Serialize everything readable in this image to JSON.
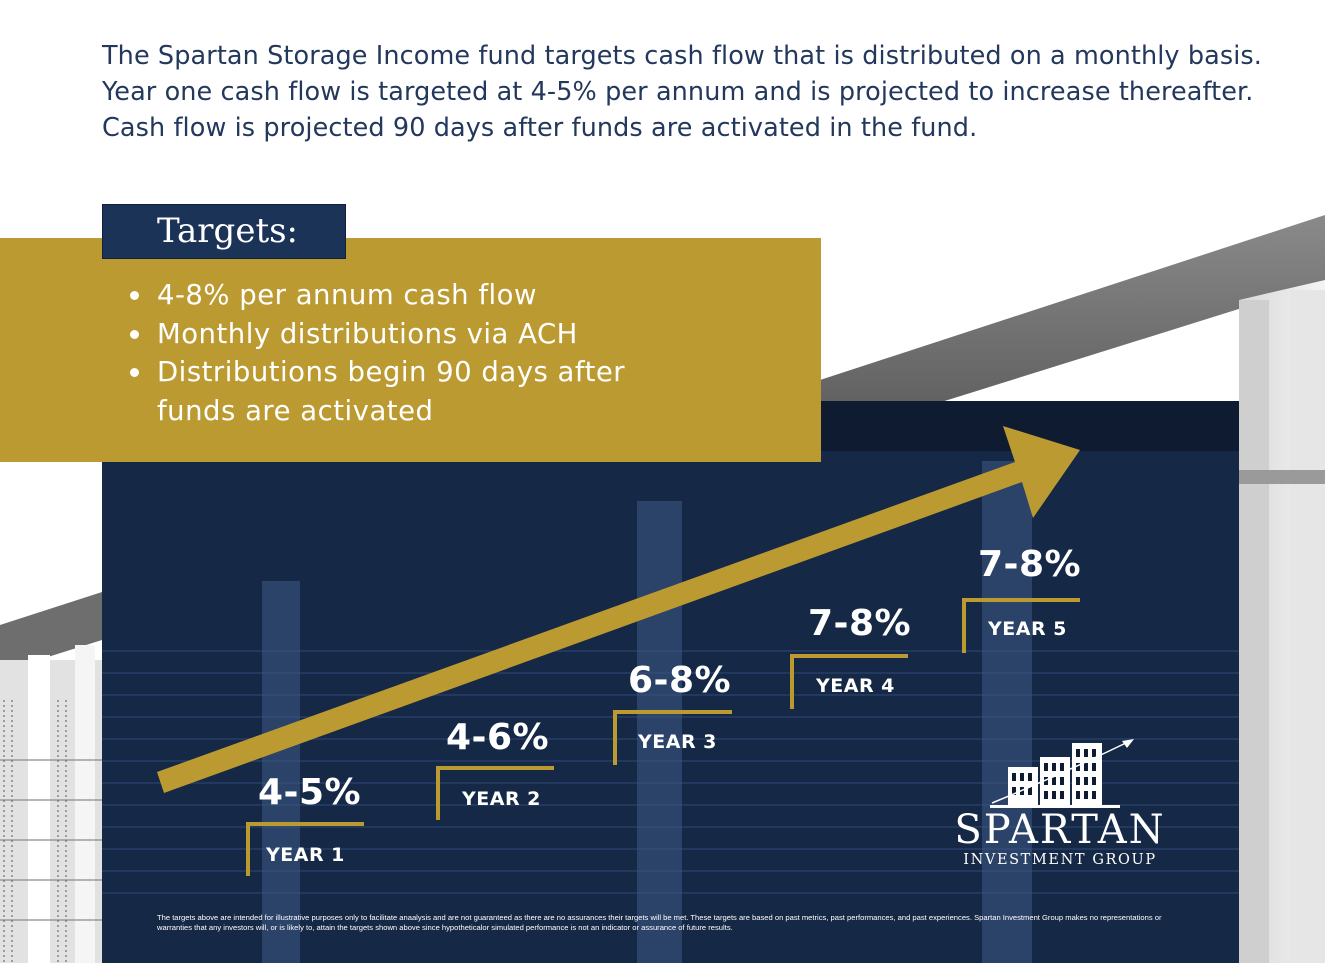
{
  "intro": {
    "line1": "The Spartan Storage Income fund targets cash flow that is distributed on a monthly basis.",
    "line2": "Year one cash flow is targeted at 4-5% per annum and is projected to increase thereafter.",
    "line3": "Cash flow is projected 90 days after funds are activated in the fund."
  },
  "targets": {
    "title": "Targets:",
    "items": [
      "4-8% per annum cash flow",
      "Monthly distributions via ACH",
      "Distributions begin 90 days after",
      "funds are activated"
    ]
  },
  "steps": [
    {
      "value": "4-5%",
      "year": "YEAR 1"
    },
    {
      "value": "4-6%",
      "year": "YEAR 2"
    },
    {
      "value": "6-8%",
      "year": "YEAR 3"
    },
    {
      "value": "7-8%",
      "year": "YEAR 4"
    },
    {
      "value": "7-8%",
      "year": "YEAR 5"
    }
  ],
  "disclaimer": "The targets above are intended for illustrative purposes only to facilitate anaalysis and are not guaranteed as there are no assurances their targets will be met. These targets are based on past metrics, past performances, and past experiences. Spartan Investment Group makes no representations or warranties that any investors will, or is likely to, attain the targets shown above since hypotheticalor simulated performance is not an indicator or assurance of future results.",
  "logo": {
    "name": "SPARTAN",
    "subtitle": "INVESTMENT GROUP"
  },
  "colors": {
    "gold": "#bc9a32",
    "navy": "#1c3358",
    "dark_navy": "#0e1b30",
    "text_blue": "#23385c"
  },
  "icons": [
    "bullet-dot-icon",
    "growth-arrow-icon",
    "buildings-logo-icon"
  ]
}
